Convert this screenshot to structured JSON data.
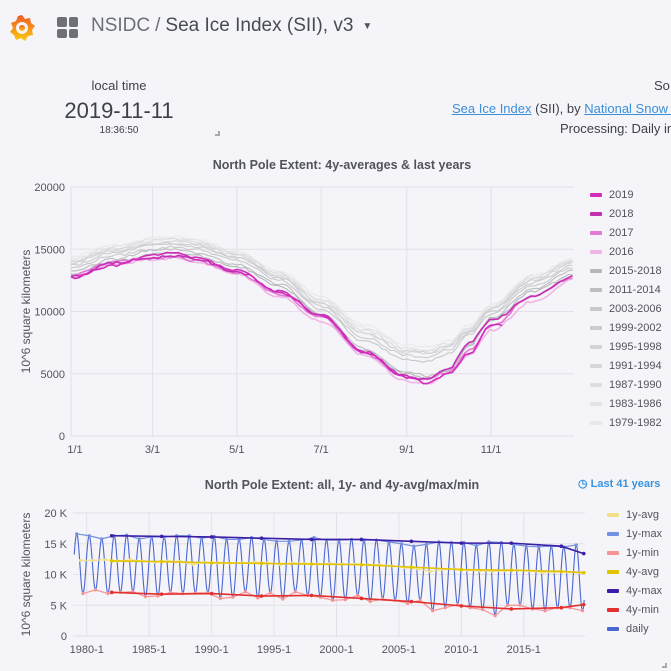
{
  "header": {
    "logo": "grafana-logo",
    "apps_icon": "grid-icon",
    "folder": "NSIDC",
    "separator": "/",
    "dashboard": "Sea Ice Index (SII), v3"
  },
  "local_time": {
    "label": "local time",
    "date": "2019-11-11",
    "time": "18:36:50"
  },
  "source": {
    "heading": "So",
    "link1": "Sea Ice Index",
    "middle": " (SII), by ",
    "link2": "National Snow a",
    "processing": "Processing: Daily in"
  },
  "chart_data": [
    {
      "type": "line",
      "title": "North Pole Extent: 4y-averages & last years",
      "ylabel": "10^6 square kilometers",
      "ylim": [
        0,
        20000
      ],
      "yticks": [
        "0",
        "5000",
        "10000",
        "15000",
        "20000"
      ],
      "xticks": [
        {
          "label": "1/1",
          "day": 0
        },
        {
          "label": "3/1",
          "day": 59
        },
        {
          "label": "5/1",
          "day": 120
        },
        {
          "label": "7/1",
          "day": 181
        },
        {
          "label": "9/1",
          "day": 243
        },
        {
          "label": "11/1",
          "day": 304
        }
      ],
      "xlim_days": [
        0,
        364
      ],
      "x_days": [
        0,
        31,
        59,
        74,
        90,
        120,
        151,
        181,
        212,
        243,
        258,
        273,
        288,
        304,
        334,
        364
      ],
      "series": [
        {
          "name": "2019",
          "color": "#d42bbd",
          "values": [
            12800,
            13700,
            14500,
            14700,
            14300,
            13300,
            11500,
            9700,
            6800,
            4800,
            4200,
            5000,
            6600,
            8900,
            null,
            null
          ],
          "end_day": 314
        },
        {
          "name": "2018",
          "color": "#c330b4",
          "values": [
            12700,
            13900,
            14300,
            14500,
            14200,
            13200,
            11600,
            9700,
            6700,
            4700,
            4600,
            5400,
            7500,
            9300,
            11200,
            12800
          ]
        },
        {
          "name": "2017",
          "color": "#e27ad4",
          "values": [
            12900,
            14000,
            14300,
            14400,
            14100,
            13100,
            11400,
            9600,
            6600,
            4700,
            4600,
            5100,
            6900,
            8800,
            11300,
            12700
          ]
        },
        {
          "name": "2016",
          "color": "#efb5e6",
          "values": [
            12700,
            13800,
            14200,
            14300,
            14000,
            13000,
            11200,
            9200,
            6500,
            4400,
            4200,
            5000,
            6500,
            8500,
            10800,
            12600
          ]
        },
        {
          "name": "2015-2018",
          "color": "#b4b8b8",
          "values": [
            13000,
            14000,
            14600,
            14700,
            14500,
            13600,
            12000,
            9700,
            6800,
            5000,
            4600,
            5200,
            7200,
            9300,
            11600,
            13000
          ]
        },
        {
          "name": "2011-2014",
          "color": "#babebe",
          "values": [
            13200,
            14200,
            14900,
            15000,
            14700,
            13800,
            12200,
            9800,
            7000,
            5200,
            4800,
            5300,
            7300,
            9500,
            11800,
            13300
          ]
        },
        {
          "name": "2003-2006",
          "color": "#c6c8c9",
          "values": [
            13500,
            14500,
            15000,
            15200,
            15000,
            14100,
            12500,
            10200,
            7600,
            6200,
            6000,
            6600,
            8100,
            9800,
            12100,
            13500
          ]
        },
        {
          "name": "1999-2002",
          "color": "#cbcccd",
          "values": [
            13700,
            14700,
            15300,
            15400,
            15200,
            14300,
            12700,
            10400,
            7900,
            6500,
            6300,
            6900,
            8300,
            10000,
            12300,
            13700
          ]
        },
        {
          "name": "1995-1998",
          "color": "#d2d3d5",
          "values": [
            13900,
            14900,
            15400,
            15500,
            15300,
            14400,
            12800,
            10600,
            8200,
            6800,
            6700,
            7200,
            8500,
            10200,
            12500,
            13900
          ]
        },
        {
          "name": "1991-1994",
          "color": "#d6d7d9",
          "values": [
            14000,
            15000,
            15500,
            15700,
            15500,
            14500,
            12900,
            10700,
            8300,
            6700,
            6600,
            7100,
            8400,
            10200,
            12600,
            14000
          ]
        },
        {
          "name": "1987-1990",
          "color": "#dcdde0",
          "values": [
            14100,
            15100,
            15700,
            15800,
            15600,
            14600,
            13000,
            10900,
            8500,
            6900,
            6800,
            7300,
            8600,
            10300,
            12700,
            14100
          ]
        },
        {
          "name": "1983-1986",
          "color": "#e3e3e6",
          "values": [
            14200,
            15200,
            15800,
            15900,
            15700,
            14700,
            13100,
            11000,
            8700,
            7100,
            6900,
            7400,
            8700,
            10400,
            12800,
            14200
          ]
        },
        {
          "name": "1979-1982",
          "color": "#e8e8eb",
          "values": [
            14400,
            15300,
            15900,
            16000,
            15800,
            14800,
            13200,
            11200,
            8900,
            7300,
            7100,
            7600,
            8900,
            10600,
            12900,
            14300
          ]
        }
      ]
    },
    {
      "type": "line",
      "title": "North Pole Extent: all, 1y- and 4y-avg/max/min",
      "time_range": "Last 41 years",
      "ylabel": "10^6 square kilometers",
      "ylim": [
        0,
        20
      ],
      "yticks": [
        "0",
        "5 K",
        "10 K",
        "15 K",
        "20 K"
      ],
      "xticks": [
        "1980-1",
        "1985-1",
        "1990-1",
        "1995-1",
        "2000-1",
        "2005-1",
        "2010-1",
        "2015-1"
      ],
      "xlim": [
        1978.9,
        2019.9
      ],
      "years": [
        1979,
        1980,
        1981,
        1982,
        1983,
        1984,
        1985,
        1986,
        1987,
        1988,
        1989,
        1990,
        1991,
        1992,
        1993,
        1994,
        1995,
        1996,
        1997,
        1998,
        1999,
        2000,
        2001,
        2002,
        2003,
        2004,
        2005,
        2006,
        2007,
        2008,
        2009,
        2010,
        2011,
        2012,
        2013,
        2014,
        2015,
        2016,
        2017,
        2018,
        2019
      ],
      "series": [
        {
          "name": "1y-avg",
          "color": "#f0e08a",
          "values": [
            12.3,
            12.3,
            12.4,
            12.2,
            12.4,
            12.2,
            12.0,
            12.2,
            12.1,
            11.6,
            12.0,
            11.9,
            11.8,
            11.9,
            12.0,
            11.9,
            11.6,
            11.9,
            11.8,
            11.7,
            11.8,
            11.7,
            11.7,
            11.6,
            11.6,
            11.4,
            11.1,
            10.9,
            10.5,
            10.8,
            10.9,
            10.7,
            10.6,
            10.5,
            10.6,
            10.7,
            10.6,
            10.3,
            10.4,
            10.4,
            10.3
          ]
        },
        {
          "name": "1y-max",
          "color": "#7391e0",
          "values": [
            16.6,
            16.3,
            15.8,
            16.3,
            16.4,
            15.8,
            16.1,
            16.1,
            16.3,
            16.3,
            15.9,
            16.2,
            15.7,
            15.7,
            16.0,
            15.7,
            15.4,
            15.4,
            15.6,
            16.0,
            15.6,
            15.6,
            15.7,
            15.6,
            15.6,
            15.3,
            15.0,
            14.6,
            14.9,
            15.3,
            15.2,
            15.2,
            14.7,
            15.3,
            15.2,
            14.9,
            14.6,
            14.5,
            14.6,
            14.5,
            14.8
          ]
        },
        {
          "name": "1y-min",
          "color": "#f49494",
          "values": [
            6.9,
            7.5,
            6.9,
            7.1,
            7.2,
            6.4,
            6.5,
            7.1,
            6.9,
            7.0,
            7.0,
            6.1,
            6.3,
            7.2,
            6.2,
            7.0,
            6.0,
            7.2,
            6.6,
            6.3,
            5.8,
            5.9,
            6.6,
            5.6,
            6.0,
            5.8,
            5.3,
            5.8,
            4.1,
            4.6,
            5.1,
            4.6,
            4.3,
            3.3,
            5.0,
            5.0,
            4.4,
            4.1,
            4.6,
            4.6,
            4.1
          ]
        },
        {
          "name": "4y-avg",
          "color": "#e2c300",
          "x": [
            1982,
            1986,
            1990,
            1994,
            1998,
            2002,
            2006,
            2010,
            2014,
            2018,
            2019.8
          ],
          "values": [
            12.2,
            12.1,
            11.9,
            11.8,
            11.7,
            11.6,
            11.2,
            10.8,
            10.7,
            10.5,
            10.3
          ]
        },
        {
          "name": "4y-max",
          "color": "#3b1ea6",
          "x": [
            1982,
            1986,
            1990,
            1994,
            1998,
            2002,
            2006,
            2010,
            2014,
            2018,
            2019.8
          ],
          "values": [
            16.3,
            16.2,
            16.1,
            15.9,
            15.7,
            15.7,
            15.4,
            15.1,
            15.1,
            14.6,
            13.4
          ]
        },
        {
          "name": "4y-min",
          "color": "#e2302e",
          "x": [
            1982,
            1986,
            1990,
            1994,
            1998,
            2002,
            2006,
            2010,
            2014,
            2018,
            2019.8
          ],
          "values": [
            7.1,
            6.8,
            6.9,
            6.5,
            6.6,
            6.1,
            5.6,
            4.9,
            4.4,
            4.6,
            5.1
          ]
        },
        {
          "name": "daily",
          "color": "#4a67d2"
        }
      ]
    }
  ]
}
